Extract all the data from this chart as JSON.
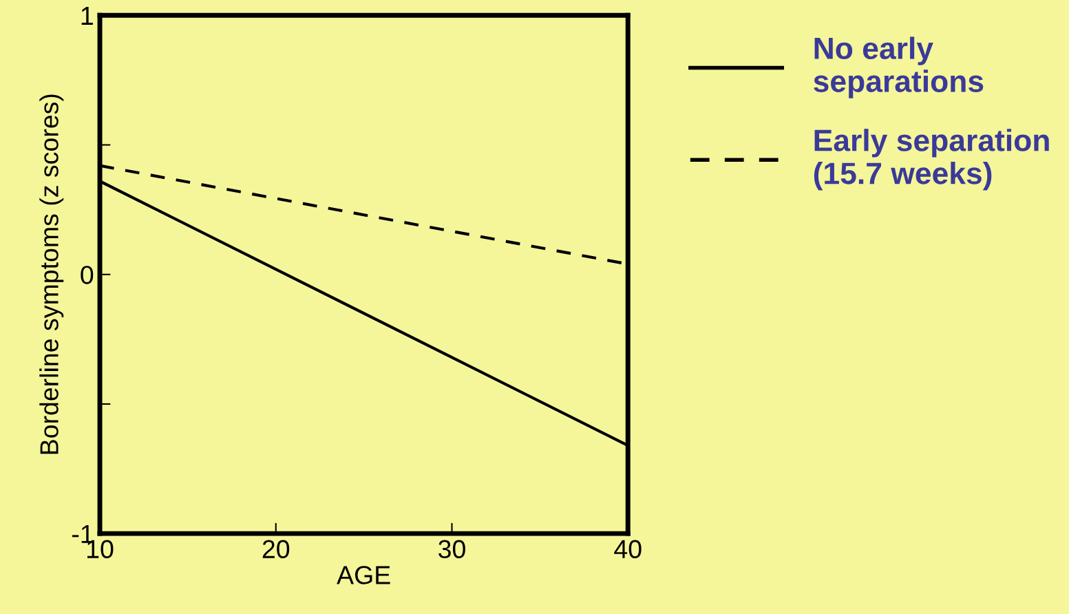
{
  "chart_data": {
    "type": "line",
    "xlabel": "AGE",
    "ylabel": "Borderline symptoms (z scores)",
    "x": [
      10,
      40
    ],
    "series": [
      {
        "name": "No early\nseparations",
        "color": "#000000",
        "line_style": "solid",
        "values": [
          0.36,
          -0.66
        ]
      },
      {
        "name": "Early separation\n(15.7 weeks)",
        "color": "#000000",
        "line_style": "dashed",
        "values": [
          0.42,
          0.04
        ]
      }
    ],
    "xlim": [
      10,
      40
    ],
    "xticks": [
      10,
      20,
      30,
      40
    ],
    "ylim": [
      -1,
      1
    ],
    "yticks": [
      {
        "value": -1,
        "label": "-1"
      },
      {
        "value": -0.5,
        "label": null
      },
      0,
      {
        "value": 0.5,
        "label": null
      },
      1
    ],
    "grid": false,
    "legend": "right",
    "marker": "none"
  }
}
